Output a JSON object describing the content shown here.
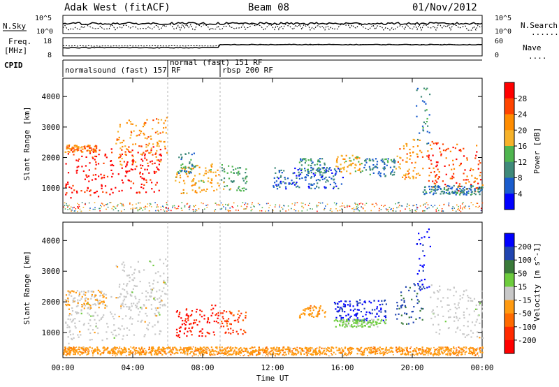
{
  "header": {
    "station": "Adak West (fitACF)",
    "beam": "Beam 08",
    "date": "01/Nov/2012"
  },
  "strips": {
    "nsky_label": "N.Sky",
    "nsearch_label": "N.Search",
    "nsearch_legend": "......",
    "freq_label_top": "Freq.",
    "freq_label_bottom": "[MHz]",
    "nave_label": "Nave",
    "nave_legend": "....",
    "cpid_label": "CPID",
    "left_ticks_noise": [
      "10^5",
      "10^0"
    ],
    "right_ticks_noise": [
      "10^5",
      "10^0"
    ],
    "left_ticks_freq": [
      "18",
      "8"
    ],
    "right_ticks_freq": [
      "60",
      "0"
    ]
  },
  "cpid_segments": [
    {
      "label": "normalsound (fast) 157 RF",
      "start": "00:00",
      "end": "06:00"
    },
    {
      "label": "normal (fast) 151 RF",
      "start": "06:00",
      "end": "09:00"
    },
    {
      "label": "rbsp 200 RF",
      "start": "09:00",
      "end": "24:00"
    }
  ],
  "colors": {
    "power_scale": [
      "#0000ff",
      "#1a5ccd",
      "#3f8a7a",
      "#4fb54f",
      "#f6b22a",
      "#ff8c00",
      "#ff4400",
      "#ff0000"
    ],
    "velocity_scale": [
      "#0000ff",
      "#2044b0",
      "#3a7a3a",
      "#6dcc3d",
      "#c8c8c8",
      "#ff9a10",
      "#ff6a00",
      "#ff2a00",
      "#ff0000"
    ],
    "ground_scatter": "#c8c8c8"
  },
  "chart_data": [
    {
      "type": "heatmap",
      "panel": "power",
      "xlabel": "Time UT",
      "ylabel": "Slant Range [km]",
      "x_ticks": [
        "00:00",
        "04:00",
        "08:00",
        "12:00",
        "16:00",
        "20:00",
        "00:00"
      ],
      "xlim_hours": [
        0,
        24
      ],
      "y_ticks": [
        "1000",
        "2000",
        "3000",
        "4000"
      ],
      "ylim_km": [
        180,
        4600
      ],
      "colorbar_label": "Power [dB]",
      "colorbar_ticks": [
        "4",
        "8",
        "12",
        "16",
        "20",
        "24",
        "28"
      ],
      "colorbar_range": [
        0,
        30
      ],
      "scatter_regions": [
        {
          "t0": 0.1,
          "t1": 5.6,
          "r0": 650,
          "r1": 2200,
          "r_slope": 250,
          "value": 28
        },
        {
          "t0": 0.1,
          "t1": 2.0,
          "r0": 2200,
          "r1": 2450,
          "r_slope": 0,
          "value": 22
        },
        {
          "t0": 3.0,
          "t1": 6.0,
          "r0": 1700,
          "r1": 3200,
          "r_slope": 200,
          "value": 20
        },
        {
          "t0": 6.4,
          "t1": 8.9,
          "r0": 800,
          "r1": 1700,
          "r_slope": 150,
          "value": 18
        },
        {
          "t0": 6.6,
          "t1": 7.6,
          "r0": 1500,
          "r1": 2200,
          "r_slope": 0,
          "value": 10
        },
        {
          "t0": 9.0,
          "t1": 10.5,
          "r0": 1000,
          "r1": 1800,
          "r_slope": -100,
          "value": 12
        },
        {
          "t0": 12.0,
          "t1": 16.0,
          "r0": 1000,
          "r1": 1700,
          "r_slope": 0,
          "value": 6
        },
        {
          "t0": 13.5,
          "t1": 15.0,
          "r0": 1500,
          "r1": 2000,
          "r_slope": 0,
          "value": 10
        },
        {
          "t0": 15.5,
          "t1": 17.0,
          "r0": 1500,
          "r1": 2100,
          "r_slope": 0,
          "value": 18
        },
        {
          "t0": 17.0,
          "t1": 19.0,
          "r0": 1400,
          "r1": 2000,
          "r_slope": 0,
          "value": 8
        },
        {
          "t0": 19.0,
          "t1": 20.6,
          "r0": 1100,
          "r1": 2400,
          "r_slope": 350,
          "value": 20
        },
        {
          "t0": 20.2,
          "t1": 21.0,
          "r0": 2400,
          "r1": 4400,
          "r_slope": 0,
          "value": 8
        },
        {
          "t0": 20.8,
          "t1": 24.0,
          "r0": 1000,
          "r1": 2600,
          "r_slope": -200,
          "value": 24
        },
        {
          "t0": 20.5,
          "t1": 24.0,
          "r0": 800,
          "r1": 1100,
          "r_slope": 0,
          "value": 8
        }
      ]
    },
    {
      "type": "heatmap",
      "panel": "velocity",
      "xlabel": "Time UT",
      "ylabel": "Slant Range [km]",
      "x_ticks": [
        "00:00",
        "04:00",
        "08:00",
        "12:00",
        "16:00",
        "20:00",
        "00:00"
      ],
      "xlim_hours": [
        0,
        24
      ],
      "y_ticks": [
        "1000",
        "2000",
        "3000",
        "4000"
      ],
      "ylim_km": [
        180,
        4600
      ],
      "colorbar_label": "Velocity [m s^-1]",
      "colorbar_ticks": [
        "200",
        "100",
        "50",
        "15",
        "-15",
        "-50",
        "-100",
        "-200"
      ],
      "colorbar_range": [
        -250,
        250
      ],
      "scatter_regions": [
        {
          "t0": 0.1,
          "t1": 5.6,
          "r0": 650,
          "r1": 2200,
          "r_slope": 250,
          "value": 0
        },
        {
          "t0": 0.1,
          "t1": 2.5,
          "r0": 1800,
          "r1": 2400,
          "r_slope": 0,
          "value": -40
        },
        {
          "t0": 3.0,
          "t1": 6.0,
          "r0": 1700,
          "r1": 3300,
          "r_slope": 200,
          "value": 0
        },
        {
          "t0": 6.4,
          "t1": 8.9,
          "r0": 800,
          "r1": 1800,
          "r_slope": 150,
          "value": -200
        },
        {
          "t0": 9.0,
          "t1": 10.5,
          "r0": 1000,
          "r1": 1800,
          "r_slope": -100,
          "value": -150
        },
        {
          "t0": 13.5,
          "t1": 15.0,
          "r0": 1500,
          "r1": 1900,
          "r_slope": 0,
          "value": -60
        },
        {
          "t0": 15.5,
          "t1": 18.5,
          "r0": 1400,
          "r1": 2100,
          "r_slope": 0,
          "value": 200
        },
        {
          "t0": 15.5,
          "t1": 18.5,
          "r0": 1200,
          "r1": 1450,
          "r_slope": 0,
          "value": 40
        },
        {
          "t0": 19.0,
          "t1": 20.6,
          "r0": 1100,
          "r1": 2400,
          "r_slope": 350,
          "value": 150
        },
        {
          "t0": 20.2,
          "t1": 21.0,
          "r0": 2400,
          "r1": 4400,
          "r_slope": 0,
          "value": 220
        },
        {
          "t0": 21.0,
          "t1": 24.0,
          "r0": 1000,
          "r1": 2600,
          "r_slope": -200,
          "value": 0
        },
        {
          "t0": 0.0,
          "t1": 24.0,
          "r0": 300,
          "r1": 550,
          "r_slope": 0,
          "value": -60
        }
      ]
    }
  ]
}
